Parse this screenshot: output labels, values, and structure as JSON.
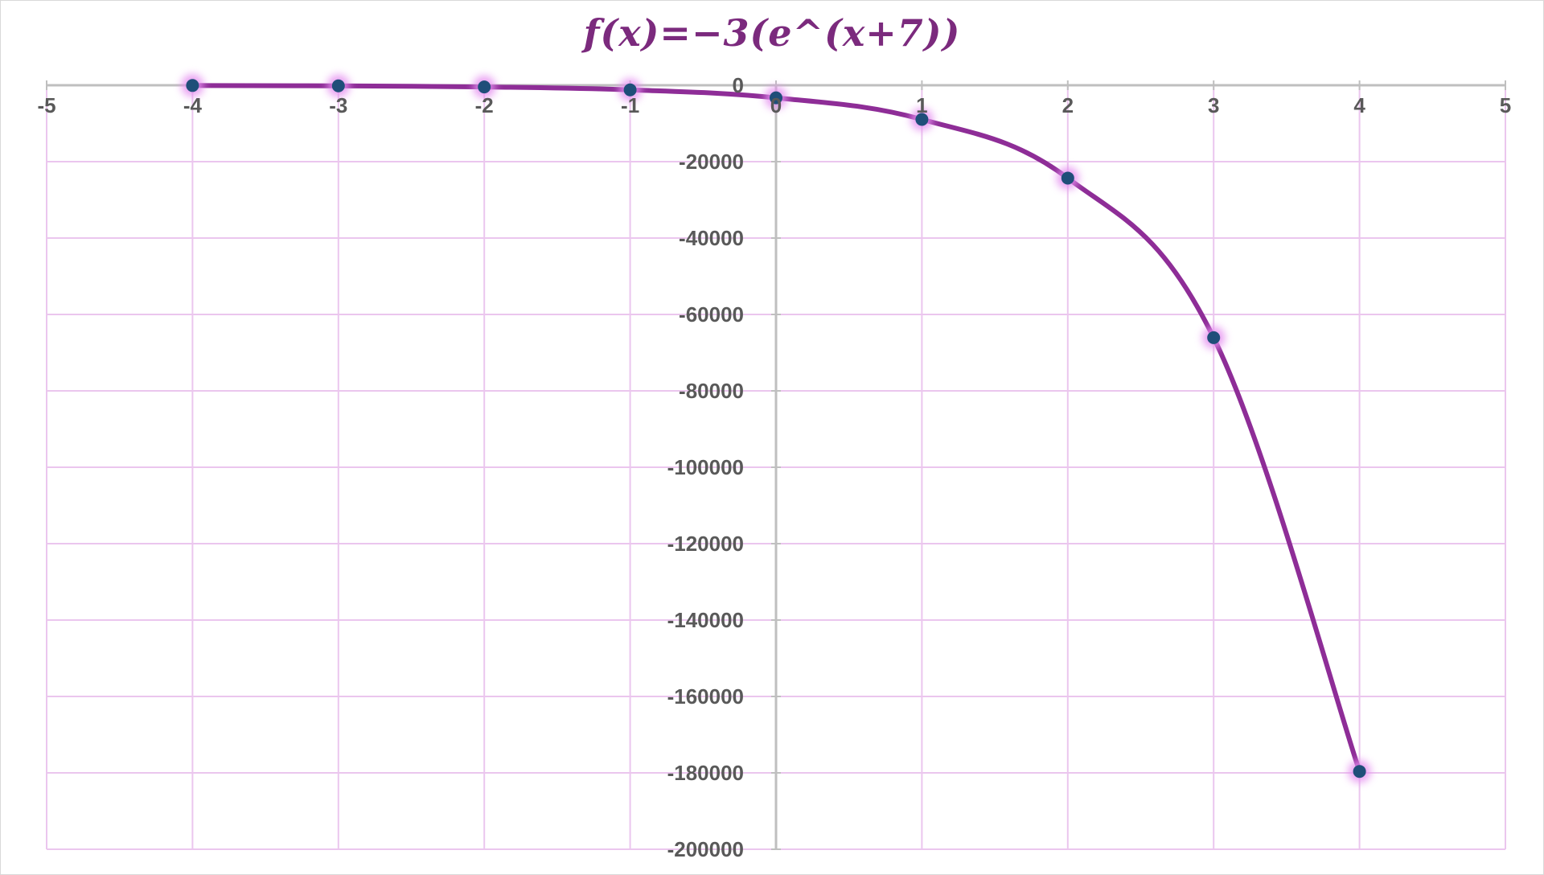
{
  "chart_data": {
    "type": "scatter",
    "title": "f(x)=−3(e^(x+7))",
    "xlabel": "",
    "ylabel": "",
    "xlim": [
      -5,
      5
    ],
    "ylim": [
      -200000,
      0
    ],
    "x_ticks": [
      "-5",
      "-4",
      "-3",
      "-2",
      "-1",
      "0",
      "1",
      "2",
      "3",
      "4",
      "5"
    ],
    "y_ticks": [
      "0",
      "-20000",
      "-40000",
      "-60000",
      "-80000",
      "-100000",
      "-120000",
      "-140000",
      "-160000",
      "-180000",
      "-200000"
    ],
    "grid": true,
    "legend": "none",
    "smooth_line": true,
    "series": [
      {
        "x": [
          -4,
          -3,
          -2,
          -1,
          0,
          1,
          2,
          3,
          4
        ],
        "y": [
          -60.26,
          -163.79,
          -445.23,
          -1210.29,
          -3289.9,
          -8942.87,
          -24309.22,
          -66079.87,
          -179623.77
        ]
      }
    ],
    "colors": {
      "title": "#7b2a7d",
      "line": "#8e2d97",
      "marker": "#1f4e79",
      "marker_glow": "#e58ff0",
      "grid": "#ebc6ee",
      "axis": "#bfbfbf",
      "tick_text": "#595959"
    }
  }
}
